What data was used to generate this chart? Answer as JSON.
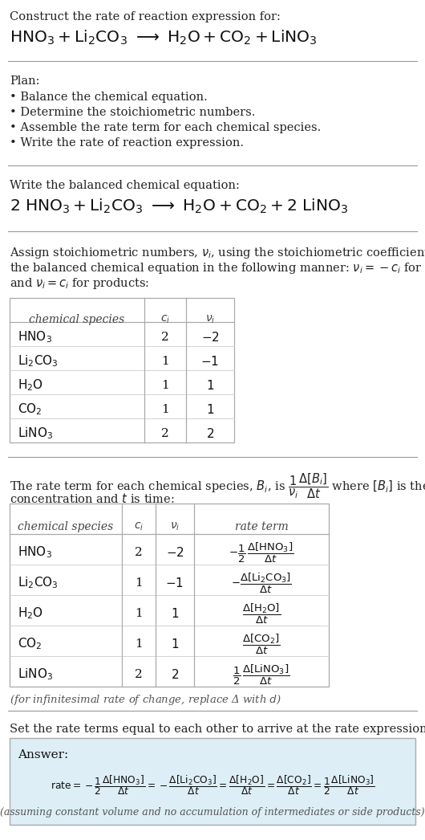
{
  "bg_color": "#ffffff",
  "text_color": "#222222",
  "gray_text": "#555555",
  "light_blue_bg": "#ddeef6",
  "table_border": "#bbbbbb",
  "title_text": "Construct the rate of reaction expression for:",
  "plan_header": "Plan:",
  "plan_items": [
    "• Balance the chemical equation.",
    "• Determine the stoichiometric numbers.",
    "• Assemble the rate term for each chemical species.",
    "• Write the rate of reaction expression."
  ],
  "balanced_header": "Write the balanced chemical equation:",
  "stoich_intro_lines": [
    "Assign stoichiometric numbers, $\\nu_i$, using the stoichiometric coefficients, $c_i$, from",
    "the balanced chemical equation in the following manner: $\\nu_i = -c_i$ for reactants",
    "and $\\nu_i = c_i$ for products:"
  ],
  "rate_intro_line1": "The rate term for each chemical species, $B_i$, is $\\dfrac{1}{\\nu_i}\\dfrac{\\Delta[B_i]}{\\Delta t}$ where $[B_i]$ is the amount",
  "rate_intro_line2": "concentration and $t$ is time:",
  "infinitesimal_note": "(for infinitesimal rate of change, replace Δ with $d$)",
  "set_equal_text": "Set the rate terms equal to each other to arrive at the rate expression:",
  "answer_label": "Answer:",
  "answer_note": "(assuming constant volume and no accumulation of intermediates or side products)"
}
